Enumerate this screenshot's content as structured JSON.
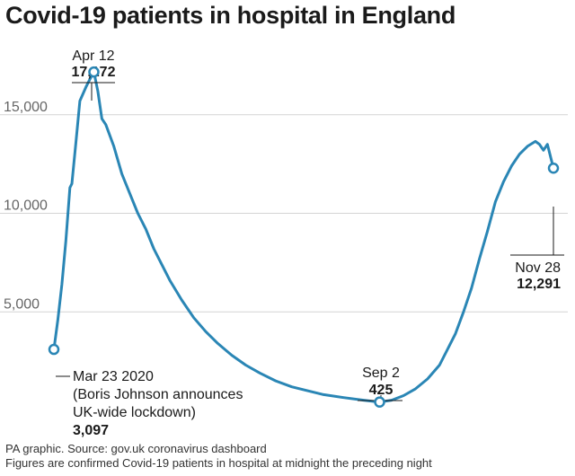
{
  "title": "Covid-19 patients in hospital in England",
  "chart_data": {
    "type": "line",
    "title": "Covid-19 patients in hospital in England",
    "xlabel": "",
    "ylabel": "",
    "ylim": [
      0,
      19000
    ],
    "xlim": [
      "2020-03-23",
      "2020-11-28"
    ],
    "yticks": [
      5000,
      10000,
      15000
    ],
    "ytick_labels": [
      "5,000",
      "10,000",
      "15,000"
    ],
    "grid": "horizontal",
    "line_color": "#2a86b5",
    "series": [
      {
        "points": [
          [
            "2020-03-23",
            3097
          ],
          [
            "2020-03-25",
            4600
          ],
          [
            "2020-03-27",
            6400
          ],
          [
            "2020-03-29",
            8600
          ],
          [
            "2020-03-31",
            11300
          ],
          [
            "2020-04-01",
            11500
          ],
          [
            "2020-04-03",
            13600
          ],
          [
            "2020-04-05",
            15700
          ],
          [
            "2020-04-08",
            16400
          ],
          [
            "2020-04-10",
            16800
          ],
          [
            "2020-04-12",
            17172
          ],
          [
            "2020-04-14",
            16200
          ],
          [
            "2020-04-16",
            14800
          ],
          [
            "2020-04-18",
            14500
          ],
          [
            "2020-04-22",
            13400
          ],
          [
            "2020-04-26",
            12000
          ],
          [
            "2020-04-30",
            11000
          ],
          [
            "2020-05-04",
            10000
          ],
          [
            "2020-05-08",
            9200
          ],
          [
            "2020-05-12",
            8200
          ],
          [
            "2020-05-16",
            7400
          ],
          [
            "2020-05-20",
            6600
          ],
          [
            "2020-05-26",
            5600
          ],
          [
            "2020-06-01",
            4700
          ],
          [
            "2020-06-07",
            4000
          ],
          [
            "2020-06-13",
            3400
          ],
          [
            "2020-06-20",
            2800
          ],
          [
            "2020-06-27",
            2300
          ],
          [
            "2020-07-04",
            1900
          ],
          [
            "2020-07-12",
            1500
          ],
          [
            "2020-07-20",
            1200
          ],
          [
            "2020-07-28",
            1000
          ],
          [
            "2020-08-05",
            800
          ],
          [
            "2020-08-15",
            650
          ],
          [
            "2020-08-25",
            520
          ],
          [
            "2020-09-02",
            425
          ],
          [
            "2020-09-08",
            520
          ],
          [
            "2020-09-14",
            750
          ],
          [
            "2020-09-20",
            1100
          ],
          [
            "2020-09-26",
            1600
          ],
          [
            "2020-10-02",
            2300
          ],
          [
            "2020-10-06",
            3100
          ],
          [
            "2020-10-10",
            3900
          ],
          [
            "2020-10-14",
            5000
          ],
          [
            "2020-10-18",
            6200
          ],
          [
            "2020-10-22",
            7700
          ],
          [
            "2020-10-26",
            9100
          ],
          [
            "2020-10-30",
            10600
          ],
          [
            "2020-11-03",
            11600
          ],
          [
            "2020-11-07",
            12400
          ],
          [
            "2020-11-11",
            13000
          ],
          [
            "2020-11-15",
            13400
          ],
          [
            "2020-11-19",
            13650
          ],
          [
            "2020-11-21",
            13500
          ],
          [
            "2020-11-23",
            13200
          ],
          [
            "2020-11-25",
            13500
          ],
          [
            "2020-11-28",
            12291
          ]
        ]
      }
    ],
    "annotations": [
      {
        "date": "Apr 12",
        "value": "17,172",
        "x": "2020-04-12",
        "y": 17172
      },
      {
        "date": "Mar 23 2020",
        "note_line1": "(Boris Johnson announces",
        "note_line2": "UK-wide lockdown)",
        "value": "3,097",
        "x": "2020-03-23",
        "y": 3097
      },
      {
        "date": "Sep 2",
        "value": "425",
        "x": "2020-09-02",
        "y": 425
      },
      {
        "date": "Nov 28",
        "value": "12,291",
        "x": "2020-11-28",
        "y": 12291
      }
    ]
  },
  "source": {
    "line1": "PA graphic. Source: gov.uk coronavirus dashboard",
    "line2": "Figures are confirmed Covid-19 patients in hospital at midnight the preceding night"
  }
}
